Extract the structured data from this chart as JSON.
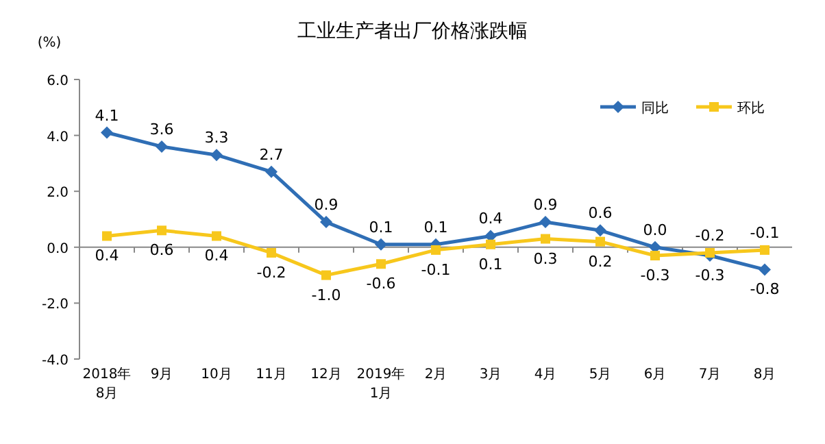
{
  "chart_data": {
    "type": "line",
    "title": "工业生产者出厂价格涨跌幅",
    "ylabel": "(%)",
    "categories": [
      "2018年\n8月",
      "9月",
      "10月",
      "11月",
      "12月",
      "2019年\n1月",
      "2月",
      "3月",
      "4月",
      "5月",
      "6月",
      "7月",
      "8月"
    ],
    "series": [
      {
        "name": "同比",
        "color": "#2f6eb5",
        "marker": "diamond",
        "values": [
          4.1,
          3.6,
          3.3,
          2.7,
          0.9,
          0.1,
          0.1,
          0.4,
          0.9,
          0.6,
          0.0,
          -0.3,
          -0.8
        ],
        "value_labels": [
          "4.1",
          "3.6",
          "3.3",
          "2.7",
          "0.9",
          "0.1",
          "0.1",
          "0.4",
          "0.9",
          "0.6",
          "0.0",
          "-0.3",
          "-0.8"
        ]
      },
      {
        "name": "环比",
        "color": "#f7c71c",
        "marker": "square",
        "values": [
          0.4,
          0.6,
          0.4,
          -0.2,
          -1.0,
          -0.6,
          -0.1,
          0.1,
          0.3,
          0.2,
          -0.3,
          -0.2,
          -0.1
        ],
        "value_labels": [
          "0.4",
          "0.6",
          "0.4",
          "-0.2",
          "-1.0",
          "-0.6",
          "-0.1",
          "0.1",
          "0.3",
          "0.2",
          "-0.3",
          "-0.2",
          "-0.1"
        ]
      }
    ],
    "ylim": [
      -4,
      6
    ],
    "yticks": [
      {
        "value": -4,
        "label": "-4.0"
      },
      {
        "value": -2,
        "label": "-2.0"
      },
      {
        "value": 0,
        "label": "0.0"
      },
      {
        "value": 2,
        "label": "2.0"
      },
      {
        "value": 4,
        "label": "4.0"
      },
      {
        "value": 6,
        "label": "6.0"
      }
    ],
    "ref_lines": [
      {
        "axis": "y",
        "value": 0,
        "color": "#888888"
      }
    ],
    "legend": "top right",
    "grid": false,
    "line_style": "solid"
  }
}
